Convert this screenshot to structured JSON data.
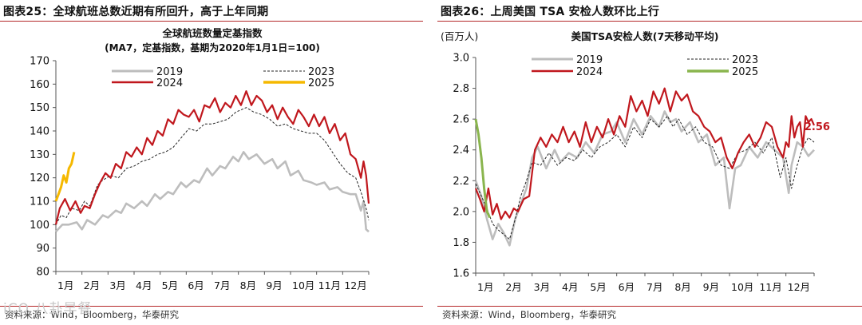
{
  "left": {
    "fig_label": "图表25：",
    "fig_title": "全球航班总数近期有所回升，高于上年同期",
    "source": "资料来源：Wind，Bloomberg，华泰研究"
  },
  "right": {
    "fig_label": "图表26：",
    "fig_title": "上周美国 TSA 安检人数环比上行",
    "source": "资料来源：Wind，Bloomberg，华泰研究"
  },
  "watermark": "iCO 八卦早餐",
  "colors": {
    "2019": "#bdbdbd",
    "2023": "#222222",
    "2024": "#c0171d",
    "2025_left": "#f5b800",
    "2025_right": "#8ab54e",
    "rule": "#b5292b"
  },
  "chart_data": [
    {
      "type": "line",
      "title": "全球航班数量定基指数",
      "subtitle": "(MA7，定基指数，基期为2020年1月1日=100)",
      "ylabel": "",
      "ylim": [
        80,
        170
      ],
      "yticks": [
        80,
        90,
        100,
        110,
        120,
        130,
        140,
        150,
        160,
        170
      ],
      "xlim": [
        0,
        12
      ],
      "xtick_labels": [
        "1月",
        "2月",
        "3月",
        "4月",
        "5月",
        "6月",
        "7月",
        "8月",
        "9月",
        "10月",
        "11月",
        "12月"
      ],
      "series": [
        {
          "name": "2019",
          "style": "solid",
          "x": [
            0,
            0.25,
            0.5,
            0.8,
            1.0,
            1.2,
            1.5,
            1.8,
            2.0,
            2.3,
            2.5,
            2.7,
            3.0,
            3.3,
            3.5,
            3.8,
            4.0,
            4.3,
            4.5,
            4.8,
            5.0,
            5.3,
            5.5,
            5.8,
            6.0,
            6.3,
            6.5,
            6.8,
            7.0,
            7.2,
            7.4,
            7.7,
            8.0,
            8.3,
            8.5,
            8.8,
            9.0,
            9.3,
            9.5,
            9.8,
            10.0,
            10.3,
            10.5,
            10.8,
            11.0,
            11.3,
            11.5,
            11.7,
            11.8,
            11.9,
            12.0
          ],
          "values": [
            97,
            100,
            100,
            101,
            98,
            102,
            100,
            104,
            103,
            106,
            105,
            109,
            107,
            110,
            108,
            113,
            111,
            114,
            113,
            118,
            116,
            119,
            118,
            124,
            121,
            125,
            124,
            129,
            127,
            131,
            128,
            130,
            126,
            128,
            124,
            127,
            121,
            123,
            119,
            118,
            117,
            118,
            115,
            116,
            114,
            113,
            113,
            106,
            110,
            98,
            97
          ]
        },
        {
          "name": "2023",
          "style": "dashed",
          "x": [
            0,
            0.2,
            0.4,
            0.6,
            0.9,
            1.1,
            1.3,
            1.6,
            1.8,
            2.1,
            2.4,
            2.7,
            3.0,
            3.3,
            3.6,
            3.9,
            4.2,
            4.5,
            4.8,
            5.1,
            5.4,
            5.7,
            6.0,
            6.3,
            6.6,
            6.9,
            7.1,
            7.3,
            7.6,
            7.9,
            8.2,
            8.5,
            8.8,
            9.1,
            9.4,
            9.7,
            10.0,
            10.3,
            10.6,
            10.9,
            11.2,
            11.5,
            11.7,
            11.9,
            12.0
          ],
          "values": [
            100,
            104,
            103,
            107,
            106,
            110,
            108,
            117,
            119,
            121,
            120,
            124,
            125,
            127,
            128,
            130,
            131,
            133,
            137,
            141,
            140,
            143,
            143,
            144,
            145,
            148,
            149,
            150,
            148,
            147,
            145,
            142,
            143,
            141,
            140,
            139,
            139,
            136,
            131,
            126,
            122,
            120,
            114,
            107,
            102
          ]
        },
        {
          "name": "2024",
          "style": "solid",
          "x": [
            0,
            0.15,
            0.35,
            0.55,
            0.75,
            0.95,
            1.1,
            1.3,
            1.5,
            1.7,
            1.9,
            2.1,
            2.3,
            2.5,
            2.7,
            2.9,
            3.1,
            3.3,
            3.5,
            3.7,
            3.9,
            4.1,
            4.3,
            4.5,
            4.7,
            4.9,
            5.1,
            5.3,
            5.5,
            5.7,
            5.9,
            6.1,
            6.3,
            6.5,
            6.7,
            6.9,
            7.1,
            7.3,
            7.5,
            7.7,
            7.9,
            8.1,
            8.3,
            8.5,
            8.7,
            8.9,
            9.1,
            9.3,
            9.5,
            9.7,
            9.9,
            10.1,
            10.3,
            10.5,
            10.7,
            10.9,
            11.1,
            11.3,
            11.5,
            11.7,
            11.8,
            11.9,
            12.0
          ],
          "values": [
            100,
            107,
            111,
            106,
            110,
            105,
            108,
            107,
            113,
            118,
            122,
            120,
            126,
            124,
            131,
            129,
            133,
            130,
            137,
            134,
            140,
            138,
            145,
            143,
            149,
            147,
            146,
            149,
            144,
            151,
            150,
            154,
            148,
            152,
            150,
            155,
            151,
            157,
            151,
            155,
            153,
            148,
            151,
            145,
            150,
            146,
            143,
            149,
            146,
            142,
            147,
            142,
            146,
            139,
            143,
            136,
            139,
            130,
            128,
            120,
            127,
            121,
            109
          ]
        },
        {
          "name": "2025",
          "style": "solid",
          "x": [
            0,
            0.1,
            0.2,
            0.3,
            0.4,
            0.5,
            0.6,
            0.7
          ],
          "values": [
            110,
            113,
            116,
            121,
            118,
            124,
            126,
            131
          ]
        }
      ]
    },
    {
      "type": "line",
      "title": "美国TSA安检人数(7天移动平均)",
      "subtitle": "",
      "ylabel": "(百万人)",
      "ylim": [
        1.6,
        3.0
      ],
      "yticks": [
        1.6,
        1.8,
        2.0,
        2.2,
        2.4,
        2.6,
        2.8,
        3.0
      ],
      "yticks_text": [
        "1.6",
        "1.8",
        "2.0",
        "2.2",
        "2.4",
        "2.6",
        "2.8",
        "3.0"
      ],
      "xlim": [
        0,
        12
      ],
      "xtick_labels": [
        "1月",
        "2月",
        "3月",
        "4月",
        "5月",
        "6月",
        "7月",
        "8月",
        "9月",
        "10月",
        "11月",
        "12月"
      ],
      "annotation": {
        "text": "2.56",
        "x": 11.6,
        "value": 2.56
      },
      "series": [
        {
          "name": "2019",
          "style": "solid",
          "x": [
            0,
            0.2,
            0.4,
            0.6,
            0.8,
            1.0,
            1.2,
            1.4,
            1.6,
            1.8,
            2.0,
            2.2,
            2.5,
            2.8,
            3.0,
            3.3,
            3.6,
            3.9,
            4.2,
            4.5,
            4.8,
            5.0,
            5.3,
            5.6,
            5.9,
            6.2,
            6.5,
            6.7,
            6.9,
            7.1,
            7.3,
            7.6,
            7.9,
            8.2,
            8.5,
            8.8,
            9.0,
            9.2,
            9.4,
            9.7,
            10.0,
            10.3,
            10.6,
            10.9,
            11.1,
            11.2,
            11.4,
            11.6,
            11.8,
            12.0
          ],
          "values": [
            2.2,
            2.1,
            1.95,
            1.82,
            1.92,
            1.86,
            1.78,
            1.95,
            2.05,
            2.15,
            2.35,
            2.42,
            2.28,
            2.4,
            2.32,
            2.38,
            2.35,
            2.45,
            2.38,
            2.5,
            2.52,
            2.58,
            2.45,
            2.6,
            2.5,
            2.62,
            2.55,
            2.65,
            2.58,
            2.6,
            2.52,
            2.58,
            2.45,
            2.5,
            2.3,
            2.35,
            2.02,
            2.28,
            2.3,
            2.42,
            2.35,
            2.45,
            2.4,
            2.35,
            2.12,
            2.3,
            2.45,
            2.42,
            2.36,
            2.4
          ]
        },
        {
          "name": "2023",
          "style": "dashed",
          "x": [
            0,
            0.2,
            0.4,
            0.6,
            0.8,
            1.0,
            1.2,
            1.4,
            1.6,
            1.8,
            2.0,
            2.3,
            2.6,
            2.9,
            3.2,
            3.5,
            3.8,
            4.1,
            4.4,
            4.7,
            5.0,
            5.3,
            5.6,
            5.9,
            6.2,
            6.5,
            6.8,
            7.0,
            7.2,
            7.5,
            7.8,
            8.1,
            8.4,
            8.7,
            9.0,
            9.3,
            9.6,
            9.9,
            10.2,
            10.5,
            10.8,
            11.0,
            11.2,
            11.4,
            11.6,
            11.8,
            12.0
          ],
          "values": [
            2.18,
            2.1,
            2.02,
            1.92,
            1.88,
            1.85,
            1.82,
            1.95,
            2.1,
            2.2,
            2.32,
            2.3,
            2.38,
            2.3,
            2.35,
            2.33,
            2.4,
            2.35,
            2.42,
            2.45,
            2.5,
            2.42,
            2.55,
            2.48,
            2.6,
            2.55,
            2.62,
            2.55,
            2.6,
            2.5,
            2.55,
            2.45,
            2.42,
            2.3,
            2.28,
            2.38,
            2.4,
            2.45,
            2.38,
            2.48,
            2.22,
            2.35,
            2.15,
            2.3,
            2.42,
            2.48,
            2.45
          ]
        },
        {
          "name": "2024",
          "style": "solid",
          "x": [
            0,
            0.15,
            0.3,
            0.45,
            0.6,
            0.75,
            0.9,
            1.05,
            1.2,
            1.35,
            1.5,
            1.7,
            1.9,
            2.1,
            2.3,
            2.5,
            2.7,
            2.9,
            3.1,
            3.3,
            3.5,
            3.7,
            3.9,
            4.1,
            4.3,
            4.5,
            4.7,
            4.9,
            5.1,
            5.3,
            5.5,
            5.7,
            5.9,
            6.1,
            6.3,
            6.5,
            6.7,
            6.9,
            7.1,
            7.3,
            7.5,
            7.7,
            7.9,
            8.1,
            8.3,
            8.5,
            8.7,
            8.9,
            9.1,
            9.3,
            9.5,
            9.7,
            9.9,
            10.1,
            10.3,
            10.5,
            10.7,
            10.9,
            11.0,
            11.1,
            11.2,
            11.3,
            11.4,
            11.5,
            11.6,
            11.7,
            11.8,
            11.9,
            12.0
          ],
          "values": [
            2.15,
            2.08,
            2.0,
            2.15,
            1.98,
            2.05,
            1.95,
            2.0,
            1.96,
            2.02,
            2.0,
            2.08,
            2.1,
            2.4,
            2.48,
            2.42,
            2.5,
            2.45,
            2.55,
            2.45,
            2.52,
            2.42,
            2.58,
            2.45,
            2.55,
            2.48,
            2.6,
            2.5,
            2.62,
            2.55,
            2.75,
            2.65,
            2.72,
            2.62,
            2.78,
            2.7,
            2.8,
            2.65,
            2.78,
            2.72,
            2.76,
            2.65,
            2.62,
            2.55,
            2.52,
            2.45,
            2.48,
            2.35,
            2.28,
            2.38,
            2.45,
            2.5,
            2.42,
            2.48,
            2.58,
            2.55,
            2.42,
            2.35,
            2.45,
            2.42,
            2.62,
            2.48,
            2.55,
            2.58,
            2.42,
            2.62,
            2.58,
            2.6,
            2.56
          ]
        },
        {
          "name": "2025",
          "style": "solid",
          "x": [
            0,
            0.1,
            0.2,
            0.3,
            0.4,
            0.5
          ],
          "values": [
            2.6,
            2.5,
            2.35,
            2.15,
            2.0,
            1.96
          ]
        }
      ]
    }
  ]
}
